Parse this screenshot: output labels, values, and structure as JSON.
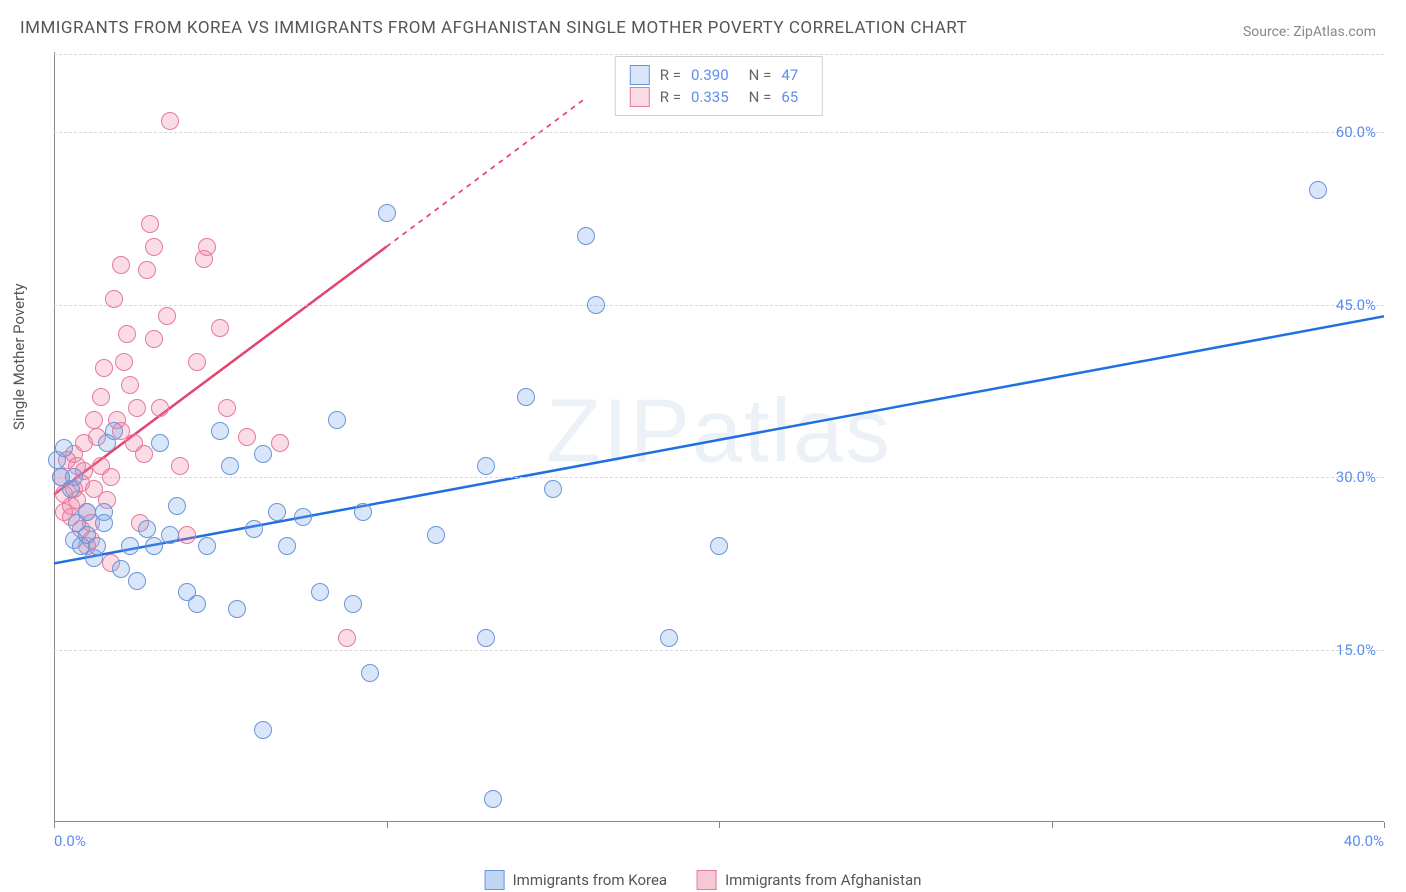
{
  "title": "IMMIGRANTS FROM KOREA VS IMMIGRANTS FROM AFGHANISTAN SINGLE MOTHER POVERTY CORRELATION CHART",
  "source_prefix": "Source: ",
  "source_link": "ZipAtlas.com",
  "watermark": "ZIPatlas",
  "chart": {
    "type": "scatter",
    "ylabel": "Single Mother Poverty",
    "xlim": [
      0,
      40
    ],
    "ylim": [
      0,
      67
    ],
    "x_ticks": [
      0,
      10,
      20,
      30,
      40
    ],
    "x_tick_labels": [
      "0.0%",
      "",
      "",
      "",
      "40.0%"
    ],
    "y_grid": [
      15,
      30,
      45,
      60
    ],
    "y_grid_labels": [
      "15.0%",
      "30.0%",
      "45.0%",
      "60.0%"
    ],
    "grid_color": "#d8d8d8",
    "axis_color": "#888888",
    "background_color": "#ffffff",
    "point_radius": 9,
    "point_stroke_width": 1.5,
    "series": [
      {
        "name": "Immigrants from Korea",
        "fill": "rgba(120,160,230,0.28)",
        "stroke": "#6a96d8",
        "trend_color": "#1f6fe0",
        "trend_width": 2.5,
        "trend_solid_to_x": 40,
        "trendline": {
          "x1": 0,
          "y1": 22.5,
          "x2": 40,
          "y2": 44
        },
        "R": "0.390",
        "N": "47",
        "points": [
          [
            0.1,
            31.5
          ],
          [
            0.2,
            30
          ],
          [
            0.3,
            32.5
          ],
          [
            0.5,
            29
          ],
          [
            0.6,
            30
          ],
          [
            0.6,
            24.5
          ],
          [
            0.7,
            26
          ],
          [
            0.8,
            24
          ],
          [
            1.0,
            25
          ],
          [
            1.0,
            27
          ],
          [
            1.2,
            23
          ],
          [
            1.3,
            24
          ],
          [
            1.5,
            27
          ],
          [
            1.5,
            26
          ],
          [
            1.6,
            33
          ],
          [
            1.8,
            34
          ],
          [
            2.0,
            22
          ],
          [
            2.3,
            24
          ],
          [
            2.5,
            21
          ],
          [
            2.8,
            25.5
          ],
          [
            3.0,
            24
          ],
          [
            3.2,
            33
          ],
          [
            3.5,
            25
          ],
          [
            3.7,
            27.5
          ],
          [
            4.0,
            20
          ],
          [
            4.3,
            19
          ],
          [
            4.6,
            24
          ],
          [
            5.0,
            34
          ],
          [
            5.3,
            31
          ],
          [
            5.5,
            18.5
          ],
          [
            6.0,
            25.5
          ],
          [
            6.3,
            8
          ],
          [
            6.3,
            32
          ],
          [
            6.7,
            27
          ],
          [
            7.5,
            26.5
          ],
          [
            7.0,
            24
          ],
          [
            8.0,
            20
          ],
          [
            8.5,
            35
          ],
          [
            9.0,
            19
          ],
          [
            9.3,
            27
          ],
          [
            9.5,
            13
          ],
          [
            10.0,
            53
          ],
          [
            11.5,
            25
          ],
          [
            13.0,
            16
          ],
          [
            13.0,
            31
          ],
          [
            13.2,
            2
          ],
          [
            14.2,
            37
          ],
          [
            15.0,
            29
          ],
          [
            16.0,
            51
          ],
          [
            16.3,
            45
          ],
          [
            18.5,
            16
          ],
          [
            20.0,
            24
          ],
          [
            38.0,
            55
          ]
        ]
      },
      {
        "name": "Immigrants from Afghanistan",
        "fill": "rgba(240,130,160,0.28)",
        "stroke": "#e47aa0",
        "trend_color": "#e3436f",
        "trend_width": 2.5,
        "trend_solid_to_x": 10,
        "trendline": {
          "x1": 0,
          "y1": 28.5,
          "x2": 16,
          "y2": 63
        },
        "R": "0.335",
        "N": "65",
        "points": [
          [
            0.2,
            30
          ],
          [
            0.3,
            27
          ],
          [
            0.3,
            28.5
          ],
          [
            0.4,
            31.5
          ],
          [
            0.5,
            26.5
          ],
          [
            0.5,
            27.5
          ],
          [
            0.6,
            29
          ],
          [
            0.6,
            32
          ],
          [
            0.7,
            31
          ],
          [
            0.7,
            28
          ],
          [
            0.8,
            29.5
          ],
          [
            0.8,
            25.5
          ],
          [
            0.9,
            30.5
          ],
          [
            0.9,
            33
          ],
          [
            1.0,
            27
          ],
          [
            1.0,
            24
          ],
          [
            1.1,
            26
          ],
          [
            1.1,
            24.5
          ],
          [
            1.2,
            29
          ],
          [
            1.2,
            35
          ],
          [
            1.3,
            33.5
          ],
          [
            1.4,
            31
          ],
          [
            1.4,
            37
          ],
          [
            1.5,
            39.5
          ],
          [
            1.6,
            28
          ],
          [
            1.7,
            30
          ],
          [
            1.7,
            22.5
          ],
          [
            1.8,
            45.5
          ],
          [
            1.9,
            35
          ],
          [
            2.0,
            34
          ],
          [
            2.0,
            48.5
          ],
          [
            2.1,
            40
          ],
          [
            2.2,
            42.5
          ],
          [
            2.3,
            38
          ],
          [
            2.4,
            33
          ],
          [
            2.5,
            36
          ],
          [
            2.6,
            26
          ],
          [
            2.7,
            32
          ],
          [
            2.8,
            48
          ],
          [
            2.9,
            52
          ],
          [
            3.0,
            42
          ],
          [
            3.0,
            50
          ],
          [
            3.2,
            36
          ],
          [
            3.4,
            44
          ],
          [
            3.5,
            61
          ],
          [
            3.8,
            31
          ],
          [
            4.0,
            25
          ],
          [
            4.3,
            40
          ],
          [
            4.5,
            49
          ],
          [
            4.6,
            50
          ],
          [
            5.0,
            43
          ],
          [
            5.2,
            36
          ],
          [
            5.8,
            33.5
          ],
          [
            6.8,
            33
          ],
          [
            8.8,
            16
          ]
        ]
      }
    ]
  },
  "legend_bottom": [
    {
      "label": "Immigrants from Korea",
      "fill": "rgba(120,160,230,0.45)",
      "stroke": "#6a96d8"
    },
    {
      "label": "Immigrants from Afghanistan",
      "fill": "rgba(240,130,160,0.45)",
      "stroke": "#e47aa0"
    }
  ]
}
